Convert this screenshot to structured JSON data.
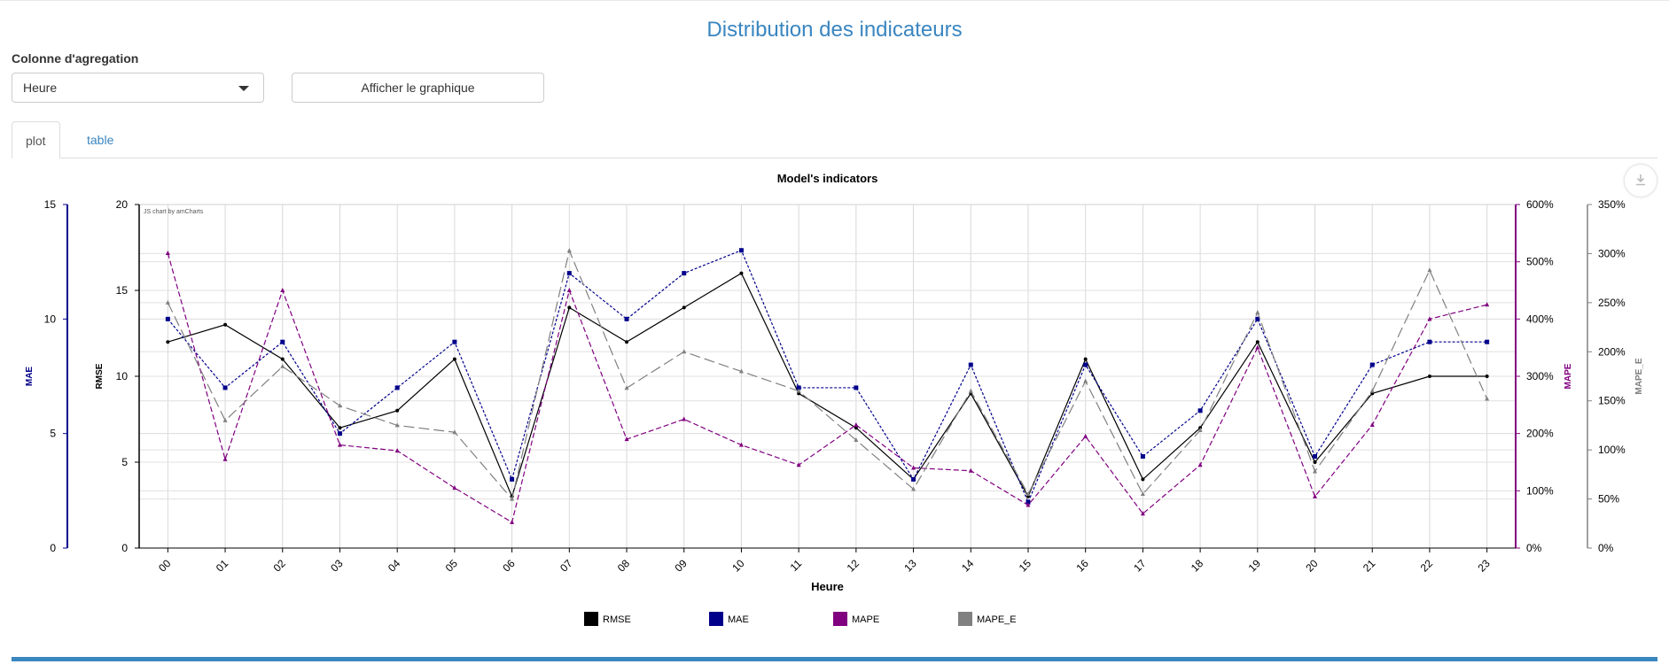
{
  "page": {
    "title": "Distribution des indicateurs"
  },
  "controls": {
    "aggregation_label": "Colonne d'agregation",
    "aggregation_value": "Heure",
    "show_button_label": "Afficher le graphique"
  },
  "tabs": [
    {
      "label": "plot",
      "active": true
    },
    {
      "label": "table",
      "active": false
    }
  ],
  "icons": {
    "download": "download-icon",
    "dropdown": "chevron-down-icon"
  },
  "colors": {
    "accent": "#3a86c0",
    "RMSE": "#000000",
    "MAE": "#00008b",
    "MAPE": "#800080",
    "MAPE_E": "#808080"
  },
  "chart_data": {
    "type": "line",
    "title": "Model's indicators",
    "credit": "JS chart by amCharts",
    "xlabel": "Heure",
    "categories": [
      "00",
      "01",
      "02",
      "03",
      "04",
      "05",
      "06",
      "07",
      "08",
      "09",
      "10",
      "11",
      "12",
      "13",
      "14",
      "15",
      "16",
      "17",
      "18",
      "19",
      "20",
      "21",
      "22",
      "23"
    ],
    "axes": {
      "MAE": {
        "label": "MAE",
        "min": 0,
        "max": 15,
        "ticks": [
          "0",
          "5",
          "10",
          "15"
        ],
        "position": "left-outer"
      },
      "RMSE": {
        "label": "RMSE",
        "min": 0,
        "max": 20,
        "ticks": [
          "0",
          "5",
          "10",
          "15",
          "20"
        ],
        "position": "left-inner"
      },
      "MAPE": {
        "label": "MAPE",
        "min": 0,
        "max": 600,
        "ticks": [
          "0%",
          "100%",
          "200%",
          "300%",
          "400%",
          "500%",
          "600%"
        ],
        "position": "right-inner"
      },
      "MAPE_E": {
        "label": "MAPE_E",
        "min": 0,
        "max": 350,
        "ticks": [
          "0%",
          "50%",
          "100%",
          "150%",
          "200%",
          "250%",
          "300%",
          "350%"
        ],
        "position": "right-outer"
      }
    },
    "series": [
      {
        "name": "RMSE",
        "axis": "RMSE",
        "dash": "solid",
        "values": [
          12,
          13,
          11,
          7,
          8,
          11,
          3,
          14,
          12,
          14,
          16,
          9,
          7,
          4,
          9,
          3,
          11,
          4,
          7,
          12,
          5,
          9,
          10,
          10
        ]
      },
      {
        "name": "MAE",
        "axis": "MAE",
        "dash": "dotted",
        "values": [
          10,
          7,
          9,
          5,
          7,
          9,
          3,
          12,
          10,
          12,
          13,
          7,
          7,
          3,
          8,
          2,
          8,
          4,
          6,
          10,
          4,
          8,
          9,
          9
        ]
      },
      {
        "name": "MAPE",
        "axis": "MAPE",
        "dash": "dashed",
        "values": [
          515,
          155,
          450,
          180,
          170,
          105,
          45,
          450,
          190,
          225,
          180,
          145,
          215,
          140,
          135,
          75,
          195,
          60,
          145,
          350,
          90,
          215,
          400,
          425
        ]
      },
      {
        "name": "MAPE_E",
        "axis": "MAPE_E",
        "dash": "longdash",
        "values": [
          250,
          130,
          185,
          145,
          125,
          118,
          50,
          303,
          163,
          200,
          180,
          160,
          110,
          60,
          160,
          55,
          170,
          55,
          120,
          240,
          78,
          160,
          283,
          152
        ]
      }
    ],
    "legend": {
      "position": "bottom",
      "items": [
        "RMSE",
        "MAE",
        "MAPE",
        "MAPE_E"
      ]
    },
    "grid": true
  }
}
